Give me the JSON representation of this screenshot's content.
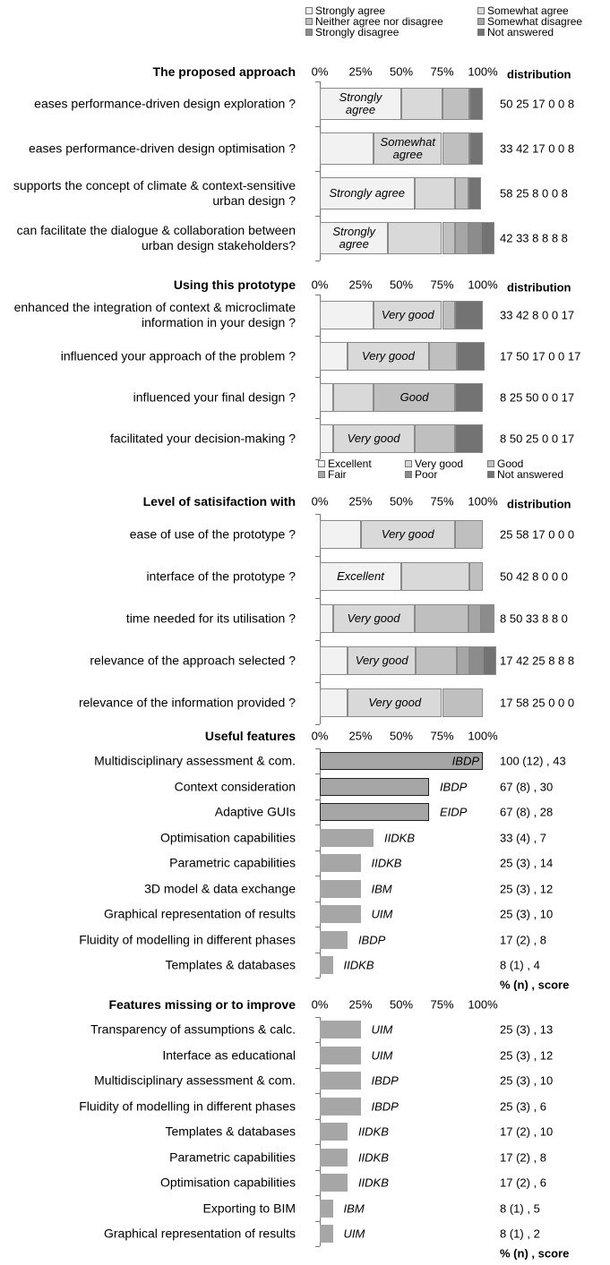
{
  "chart_data": [
    {
      "type": "stacked_bar",
      "title": "The proposed approach",
      "value_header": "distribution",
      "legend": true,
      "legend_columns": 2,
      "xlim": [
        0,
        100
      ],
      "xticks": [
        {
          "value": 0,
          "label": "0%"
        },
        {
          "value": 25,
          "label": "25%"
        },
        {
          "value": 50,
          "label": "50%"
        },
        {
          "value": 75,
          "label": "75%"
        },
        {
          "value": 100,
          "label": "100%"
        }
      ],
      "categories": [
        "eases performance-driven design exploration ?",
        "eases performance-driven design optimisation ?",
        "supports the concept of climate & context-sensitive urban design ?",
        "can facilitate the dialogue & collaboration between urban design stakeholders?"
      ],
      "series": [
        {
          "name": "Strongly agree",
          "color": "#f2f2f2",
          "values": [
            50,
            33,
            58,
            42
          ]
        },
        {
          "name": "Somewhat agree",
          "color": "#d9d9d9",
          "values": [
            25,
            42,
            25,
            33
          ]
        },
        {
          "name": "Neither agree nor disagree",
          "color": "#bfbfbf",
          "values": [
            17,
            17,
            8,
            8
          ]
        },
        {
          "name": "Somewhat disagree",
          "color": "#a6a6a6",
          "values": [
            0,
            0,
            0,
            8
          ]
        },
        {
          "name": "Strongly disagree",
          "color": "#8c8c8c",
          "values": [
            0,
            0,
            0,
            8
          ]
        },
        {
          "name": "Not answered",
          "color": "#737373",
          "values": [
            8,
            8,
            8,
            8
          ]
        }
      ],
      "value_labels": [
        "50 25 17 0 0 8",
        "33 42 17 0 0 8",
        "58 25 8 0 0 8",
        "42 33 8 8 8 8"
      ]
    },
    {
      "type": "stacked_bar",
      "title": "Using this prototype",
      "value_header": "distribution",
      "legend": false,
      "xlim": [
        0,
        100
      ],
      "xticks": [
        {
          "value": 0,
          "label": "0%"
        },
        {
          "value": 25,
          "label": "25%"
        },
        {
          "value": 50,
          "label": "50%"
        },
        {
          "value": 75,
          "label": "75%"
        },
        {
          "value": 100,
          "label": "100%"
        }
      ],
      "categories": [
        "enhanced the integration of context & microclimate information in your design ?",
        "influenced your approach of the problem ?",
        "influenced your final design ?",
        "facilitated your decision-making ?"
      ],
      "series": [
        {
          "name": "Excellent",
          "color": "#f2f2f2",
          "values": [
            33,
            17,
            8,
            8
          ]
        },
        {
          "name": "Very good",
          "color": "#d9d9d9",
          "values": [
            42,
            50,
            25,
            50
          ]
        },
        {
          "name": "Good",
          "color": "#bfbfbf",
          "values": [
            8,
            17,
            50,
            25
          ]
        },
        {
          "name": "Fair",
          "color": "#a6a6a6",
          "values": [
            0,
            0,
            0,
            0
          ]
        },
        {
          "name": "Poor",
          "color": "#8c8c8c",
          "values": [
            0,
            0,
            0,
            0
          ]
        },
        {
          "name": "Not answered",
          "color": "#737373",
          "values": [
            17,
            17,
            17,
            17
          ]
        }
      ],
      "value_labels": [
        "33 42 8 0 0 17",
        "17 50 17 0 0 17",
        "8 25 50 0 0 17",
        "8 50 25 0 0 17"
      ]
    },
    {
      "type": "stacked_bar",
      "title": "Level of satisifaction with",
      "value_header": "distribution",
      "legend": true,
      "legend_columns": 3,
      "xlim": [
        0,
        100
      ],
      "xticks": [
        {
          "value": 0,
          "label": "0%"
        },
        {
          "value": 25,
          "label": "25%"
        },
        {
          "value": 50,
          "label": "50%"
        },
        {
          "value": 75,
          "label": "75%"
        },
        {
          "value": 100,
          "label": "100%"
        }
      ],
      "categories": [
        "ease of use of the prototype ?",
        "interface of the prototype ?",
        "time needed for its utilisation ?",
        "relevance of the approach selected ?",
        "relevance of the information provided ?"
      ],
      "series": [
        {
          "name": "Excellent",
          "color": "#f2f2f2",
          "values": [
            25,
            50,
            8,
            17,
            17
          ]
        },
        {
          "name": "Very good",
          "color": "#d9d9d9",
          "values": [
            58,
            42,
            50,
            42,
            58
          ]
        },
        {
          "name": "Good",
          "color": "#bfbfbf",
          "values": [
            17,
            8,
            33,
            25,
            25
          ]
        },
        {
          "name": "Fair",
          "color": "#a6a6a6",
          "values": [
            0,
            0,
            8,
            8,
            0
          ]
        },
        {
          "name": "Poor",
          "color": "#8c8c8c",
          "values": [
            0,
            0,
            8,
            8,
            0
          ]
        },
        {
          "name": "Not answered",
          "color": "#737373",
          "values": [
            0,
            0,
            0,
            8,
            0
          ]
        }
      ],
      "value_labels": [
        "25 58 17 0 0 0",
        "50 42 8 0 0 0",
        "8 50 33 8 8 0",
        "17 42 25 8 8 8",
        "17 58 25 0 0 0"
      ]
    },
    {
      "type": "bar",
      "title": "Useful features",
      "color": "#a6a6a6",
      "footer": "% (n) , score",
      "xlim": [
        0,
        100
      ],
      "xticks": [
        {
          "value": 0,
          "label": "0%"
        },
        {
          "value": 25,
          "label": "25%"
        },
        {
          "value": 50,
          "label": "50%"
        },
        {
          "value": 75,
          "label": "75%"
        },
        {
          "value": 100,
          "label": "100%"
        }
      ],
      "categories": [
        "Multidisciplinary assessment & com.",
        "Context consideration",
        "Adaptive GUIs",
        "Optimisation capabilities",
        "Parametric capabilities",
        "3D model & data exchange",
        "Graphical representation of results",
        "Fluidity of modelling in different phases",
        "Templates & databases"
      ],
      "values": [
        100,
        67,
        67,
        33,
        25,
        25,
        25,
        17,
        8
      ],
      "codes": [
        "IBDP",
        "IBDP",
        "EIDP",
        "IIDKB",
        "IIDKB",
        "IBM",
        "UIM",
        "IBDP",
        "IIDKB"
      ],
      "outlined": [
        true,
        true,
        true,
        false,
        false,
        false,
        false,
        false,
        false
      ],
      "value_labels": [
        "100 (12) , 43",
        "67 (8) , 30",
        "67 (8) , 28",
        "33 (4) , 7",
        "25 (3) , 14",
        "25 (3) , 12",
        "25 (3) , 10",
        "17 (2) , 8",
        "8 (1) , 4"
      ]
    },
    {
      "type": "bar",
      "title": "Features missing or to improve",
      "color": "#a6a6a6",
      "footer": "% (n) , score",
      "xlim": [
        0,
        100
      ],
      "xticks": [
        {
          "value": 0,
          "label": "0%"
        },
        {
          "value": 25,
          "label": "25%"
        },
        {
          "value": 50,
          "label": "50%"
        },
        {
          "value": 75,
          "label": "75%"
        },
        {
          "value": 100,
          "label": "100%"
        }
      ],
      "categories": [
        "Transparency of assumptions & calc.",
        "Interface as educational",
        "Multidisciplinary assessment & com.",
        "Fluidity of modelling in different phases",
        "Templates & databases",
        "Parametric capabilities",
        "Optimisation capabilities",
        "Exporting to BIM",
        "Graphical representation of results"
      ],
      "values": [
        25,
        25,
        25,
        25,
        17,
        17,
        17,
        8,
        8
      ],
      "codes": [
        "UIM",
        "UIM",
        "IBDP",
        "IBDP",
        "IIDKB",
        "IIDKB",
        "IIDKB",
        "IBM",
        "UIM"
      ],
      "outlined": [
        false,
        false,
        false,
        false,
        false,
        false,
        false,
        false,
        false
      ],
      "value_labels": [
        "25 (3) , 13",
        "25 (3) , 12",
        "25 (3) , 10",
        "25 (3) , 6",
        "17 (2) , 10",
        "17 (2) , 8",
        "17 (2) , 6",
        "8 (1) , 5",
        "8 (1) , 2"
      ]
    }
  ]
}
